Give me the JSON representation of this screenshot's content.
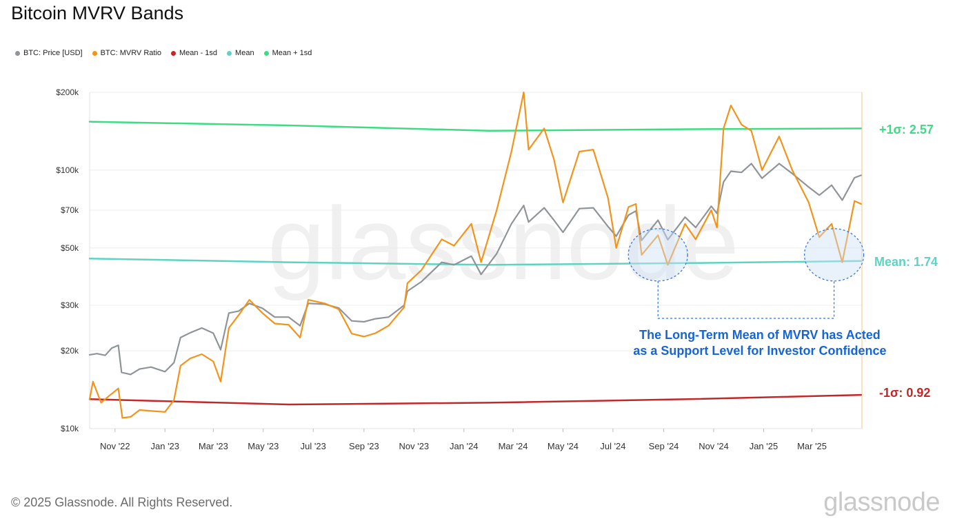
{
  "page": {
    "title": "Bitcoin MVRV Bands",
    "copyright": "© 2025 Glassnode. All Rights Reserved.",
    "logo": "glassnode",
    "watermark": "glassnode"
  },
  "legend": [
    {
      "label": "BTC: Price [USD]",
      "color": "#8f9498"
    },
    {
      "label": "BTC: MVRV Ratio",
      "color": "#f2931b"
    },
    {
      "label": "Mean - 1sd",
      "color": "#c0282a"
    },
    {
      "label": "Mean",
      "color": "#5fd3c3"
    },
    {
      "label": "Mean + 1sd",
      "color": "#3ddc84"
    }
  ],
  "chart_data": {
    "type": "line",
    "title": "Bitcoin MVRV Bands",
    "y_scale": "log",
    "ylim": [
      10000,
      200000
    ],
    "y_ticks": [
      {
        "value": 200000,
        "label": "$200k"
      },
      {
        "value": 100000,
        "label": "$100k"
      },
      {
        "value": 70000,
        "label": "$70k"
      },
      {
        "value": 50000,
        "label": "$50k"
      },
      {
        "value": 30000,
        "label": "$30k"
      },
      {
        "value": 20000,
        "label": "$20k"
      },
      {
        "value": 10000,
        "label": "$10k"
      }
    ],
    "xlim": [
      "2022-10-01",
      "2025-05-01"
    ],
    "x_ticks": [
      {
        "date": "2022-11-01",
        "label": "Nov '22"
      },
      {
        "date": "2023-01-01",
        "label": "Jan '23"
      },
      {
        "date": "2023-03-01",
        "label": "Mar '23"
      },
      {
        "date": "2023-05-01",
        "label": "May '23"
      },
      {
        "date": "2023-07-01",
        "label": "Jul '23"
      },
      {
        "date": "2023-09-01",
        "label": "Sep '23"
      },
      {
        "date": "2023-11-01",
        "label": "Nov '23"
      },
      {
        "date": "2024-01-01",
        "label": "Jan '24"
      },
      {
        "date": "2024-03-01",
        "label": "Mar '24"
      },
      {
        "date": "2024-05-01",
        "label": "May '24"
      },
      {
        "date": "2024-07-01",
        "label": "Jul '24"
      },
      {
        "date": "2024-09-01",
        "label": "Sep '24"
      },
      {
        "date": "2024-11-01",
        "label": "Nov '24"
      },
      {
        "date": "2025-01-01",
        "label": "Jan '25"
      },
      {
        "date": "2025-03-01",
        "label": "Mar '25"
      }
    ],
    "grid": true,
    "legend_position": "top-left",
    "series": [
      {
        "name": "BTC: Price [USD]",
        "color": "#8f9498",
        "points": [
          [
            "2022-10-01",
            19300
          ],
          [
            "2022-10-10",
            19500
          ],
          [
            "2022-10-20",
            19200
          ],
          [
            "2022-10-28",
            20500
          ],
          [
            "2022-11-05",
            21000
          ],
          [
            "2022-11-09",
            16500
          ],
          [
            "2022-11-20",
            16200
          ],
          [
            "2022-12-01",
            17000
          ],
          [
            "2022-12-15",
            17300
          ],
          [
            "2023-01-01",
            16600
          ],
          [
            "2023-01-12",
            18000
          ],
          [
            "2023-01-20",
            22500
          ],
          [
            "2023-02-01",
            23500
          ],
          [
            "2023-02-15",
            24500
          ],
          [
            "2023-03-01",
            23400
          ],
          [
            "2023-03-10",
            20200
          ],
          [
            "2023-03-20",
            28000
          ],
          [
            "2023-04-01",
            28500
          ],
          [
            "2023-04-14",
            30500
          ],
          [
            "2023-04-30",
            29200
          ],
          [
            "2023-05-15",
            27000
          ],
          [
            "2023-06-01",
            27000
          ],
          [
            "2023-06-15",
            25000
          ],
          [
            "2023-06-25",
            30500
          ],
          [
            "2023-07-15",
            30300
          ],
          [
            "2023-08-01",
            29300
          ],
          [
            "2023-08-17",
            26100
          ],
          [
            "2023-09-01",
            25900
          ],
          [
            "2023-09-15",
            26600
          ],
          [
            "2023-10-01",
            27000
          ],
          [
            "2023-10-20",
            30000
          ],
          [
            "2023-10-24",
            34000
          ],
          [
            "2023-11-10",
            37000
          ],
          [
            "2023-12-05",
            44000
          ],
          [
            "2023-12-20",
            43000
          ],
          [
            "2024-01-10",
            46500
          ],
          [
            "2024-01-22",
            39500
          ],
          [
            "2024-02-10",
            47500
          ],
          [
            "2024-02-28",
            62000
          ],
          [
            "2024-03-14",
            73000
          ],
          [
            "2024-03-20",
            63000
          ],
          [
            "2024-04-08",
            71500
          ],
          [
            "2024-04-20",
            64000
          ],
          [
            "2024-05-01",
            57500
          ],
          [
            "2024-05-21",
            71000
          ],
          [
            "2024-06-07",
            71500
          ],
          [
            "2024-06-25",
            60500
          ],
          [
            "2024-07-05",
            55500
          ],
          [
            "2024-07-20",
            67000
          ],
          [
            "2024-07-29",
            69500
          ],
          [
            "2024-08-05",
            53500
          ],
          [
            "2024-08-25",
            64000
          ],
          [
            "2024-09-06",
            53800
          ],
          [
            "2024-09-27",
            65800
          ],
          [
            "2024-10-10",
            60000
          ],
          [
            "2024-10-29",
            72500
          ],
          [
            "2024-11-05",
            68000
          ],
          [
            "2024-11-13",
            90000
          ],
          [
            "2024-11-22",
            99000
          ],
          [
            "2024-12-05",
            98000
          ],
          [
            "2024-12-17",
            106000
          ],
          [
            "2024-12-30",
            93000
          ],
          [
            "2025-01-20",
            106000
          ],
          [
            "2025-02-05",
            97000
          ],
          [
            "2025-02-25",
            86000
          ],
          [
            "2025-03-10",
            80000
          ],
          [
            "2025-03-25",
            87500
          ],
          [
            "2025-04-07",
            76500
          ],
          [
            "2025-04-22",
            93500
          ],
          [
            "2025-04-30",
            95500
          ]
        ]
      },
      {
        "name": "BTC: MVRV Ratio",
        "color": "#f2931b",
        "points": [
          [
            "2022-10-01",
            13000
          ],
          [
            "2022-10-05",
            15200
          ],
          [
            "2022-10-15",
            12600
          ],
          [
            "2022-10-25",
            13400
          ],
          [
            "2022-11-05",
            14300
          ],
          [
            "2022-11-10",
            11000
          ],
          [
            "2022-11-20",
            11100
          ],
          [
            "2022-12-01",
            11800
          ],
          [
            "2022-12-15",
            11700
          ],
          [
            "2023-01-01",
            11600
          ],
          [
            "2023-01-12",
            12900
          ],
          [
            "2023-01-20",
            17500
          ],
          [
            "2023-02-01",
            18700
          ],
          [
            "2023-02-15",
            19400
          ],
          [
            "2023-03-01",
            18200
          ],
          [
            "2023-03-10",
            15200
          ],
          [
            "2023-03-20",
            24500
          ],
          [
            "2023-04-01",
            27500
          ],
          [
            "2023-04-14",
            31500
          ],
          [
            "2023-04-30",
            28000
          ],
          [
            "2023-05-15",
            25500
          ],
          [
            "2023-06-01",
            25200
          ],
          [
            "2023-06-15",
            22500
          ],
          [
            "2023-06-25",
            31500
          ],
          [
            "2023-07-15",
            30500
          ],
          [
            "2023-08-01",
            29000
          ],
          [
            "2023-08-17",
            23300
          ],
          [
            "2023-09-01",
            22700
          ],
          [
            "2023-09-15",
            23400
          ],
          [
            "2023-10-01",
            25000
          ],
          [
            "2023-10-20",
            29500
          ],
          [
            "2023-10-24",
            36500
          ],
          [
            "2023-11-10",
            41000
          ],
          [
            "2023-12-05",
            54000
          ],
          [
            "2023-12-20",
            51000
          ],
          [
            "2024-01-10",
            62000
          ],
          [
            "2024-01-22",
            44000
          ],
          [
            "2024-02-10",
            70000
          ],
          [
            "2024-02-28",
            118000
          ],
          [
            "2024-03-14",
            200000
          ],
          [
            "2024-03-20",
            120000
          ],
          [
            "2024-04-08",
            145000
          ],
          [
            "2024-04-20",
            110000
          ],
          [
            "2024-05-01",
            75000
          ],
          [
            "2024-05-21",
            118000
          ],
          [
            "2024-06-07",
            120000
          ],
          [
            "2024-06-25",
            78000
          ],
          [
            "2024-07-05",
            50000
          ],
          [
            "2024-07-20",
            72000
          ],
          [
            "2024-07-29",
            74000
          ],
          [
            "2024-08-05",
            47000
          ],
          [
            "2024-08-25",
            56000
          ],
          [
            "2024-09-06",
            43000
          ],
          [
            "2024-09-27",
            62000
          ],
          [
            "2024-10-10",
            54000
          ],
          [
            "2024-10-29",
            70000
          ],
          [
            "2024-11-05",
            60000
          ],
          [
            "2024-11-13",
            145000
          ],
          [
            "2024-11-22",
            178000
          ],
          [
            "2024-12-05",
            150000
          ],
          [
            "2024-12-17",
            142000
          ],
          [
            "2024-12-30",
            100000
          ],
          [
            "2025-01-20",
            135000
          ],
          [
            "2025-02-05",
            100000
          ],
          [
            "2025-02-25",
            75000
          ],
          [
            "2025-03-10",
            55000
          ],
          [
            "2025-03-25",
            62000
          ],
          [
            "2025-04-07",
            44000
          ],
          [
            "2025-04-22",
            76000
          ],
          [
            "2025-04-30",
            74000
          ]
        ]
      },
      {
        "name": "Mean + 1sd",
        "color": "#3ddc84",
        "points": [
          [
            "2022-10-01",
            154000
          ],
          [
            "2023-06-01",
            149000
          ],
          [
            "2024-02-01",
            142000
          ],
          [
            "2024-10-01",
            144000
          ],
          [
            "2025-04-30",
            145000
          ]
        ]
      },
      {
        "name": "Mean",
        "color": "#5fd3c3",
        "points": [
          [
            "2022-10-01",
            45500
          ],
          [
            "2023-06-01",
            44000
          ],
          [
            "2024-02-01",
            43000
          ],
          [
            "2024-10-01",
            43700
          ],
          [
            "2025-04-30",
            44500
          ]
        ]
      },
      {
        "name": "Mean - 1sd",
        "color": "#c0282a",
        "points": [
          [
            "2022-10-01",
            13000
          ],
          [
            "2023-06-01",
            12400
          ],
          [
            "2024-02-01",
            12600
          ],
          [
            "2024-10-01",
            13000
          ],
          [
            "2025-04-30",
            13500
          ]
        ]
      }
    ],
    "annotations": {
      "plus_label": "+1σ: 2.57",
      "mean_label": "Mean: 1.74",
      "minus_label": "-1σ: 0.92",
      "callout": [
        "The Long-Term Mean of MVRV has Acted",
        "as a Support Level for Investor Confidence"
      ],
      "highlight_regions": [
        {
          "center_date": "2024-08-25",
          "center_value": 50000
        },
        {
          "center_date": "2025-03-28",
          "center_value": 50000
        }
      ]
    }
  }
}
